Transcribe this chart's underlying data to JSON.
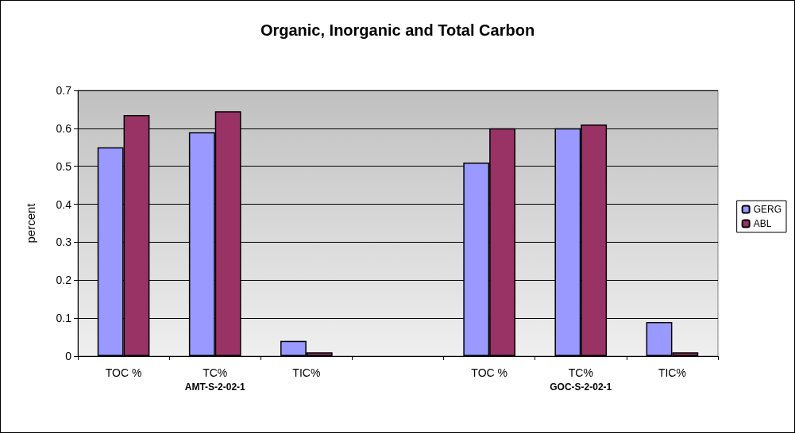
{
  "chart_data": {
    "type": "bar",
    "title": "Organic, Inorganic and Total Carbon",
    "ylabel": "percent",
    "categories": [
      "TOC %",
      "TC%",
      "TIC%",
      null,
      "TOC %",
      "TC%",
      "TIC%"
    ],
    "series": [
      {
        "name": "GERG",
        "color": "#9999ff",
        "values": [
          0.55,
          0.59,
          0.04,
          null,
          0.51,
          0.6,
          0.09
        ]
      },
      {
        "name": "ABL",
        "color": "#993366",
        "values": [
          0.635,
          0.645,
          0.01,
          null,
          0.6,
          0.61,
          0.01
        ]
      }
    ],
    "annotations": [
      "AMT-S-2-02-1",
      "GOC-S-2-02-1"
    ],
    "ylim": [
      0,
      0.7
    ],
    "yticks": [
      0,
      0.1,
      0.2,
      0.3,
      0.4,
      0.5,
      0.6,
      0.7
    ],
    "grid": "y",
    "legend": "right"
  }
}
